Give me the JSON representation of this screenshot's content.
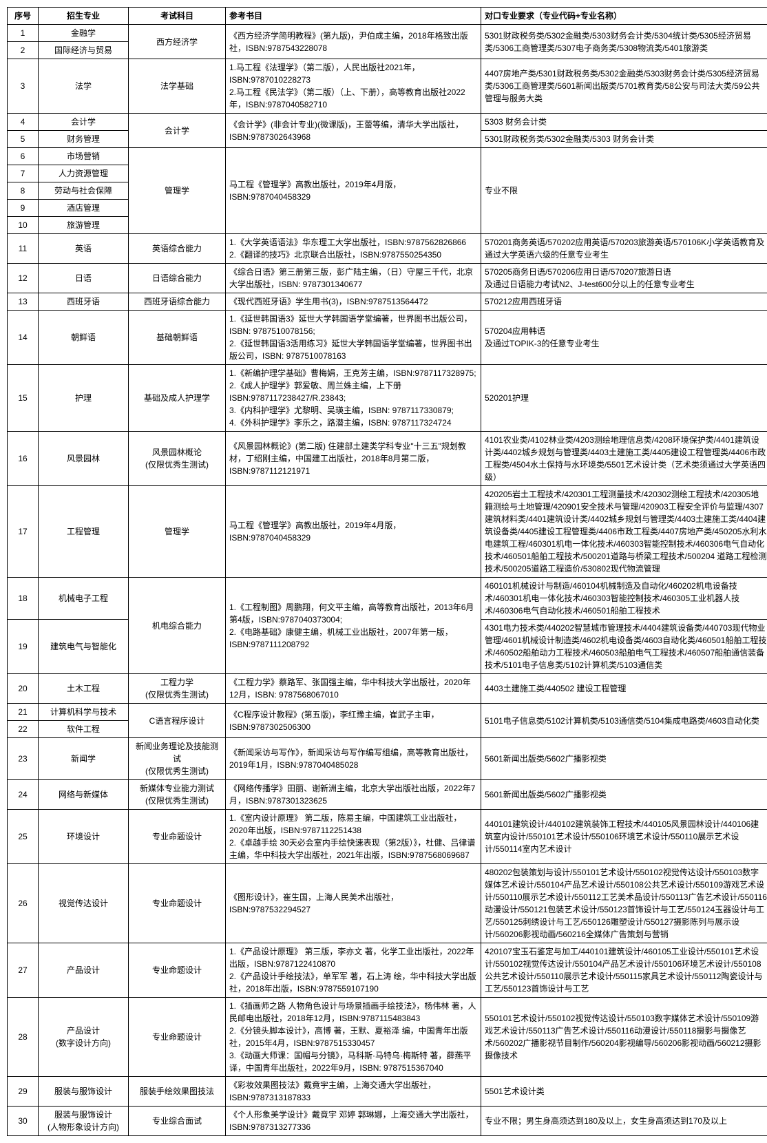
{
  "headers": {
    "seq": "序号",
    "major": "招生专业",
    "subject": "考试科目",
    "book": "参考书目",
    "req": "对口专业要求（专业代码+专业名称）"
  },
  "rows": [
    {
      "seq": "1",
      "major": "金融学",
      "subject": "西方经济学",
      "subject_rowspan": 2,
      "book": "《西方经济学简明教程》(第九版)，尹伯成主编，2018年格致出版社，ISBN:9787543228078",
      "book_rowspan": 2,
      "req": "5301财政税务类/5302金融类/5303财务会计类/5304统计类/5305经济贸易类/5306工商管理类/5307电子商务类/5308物流类/5401旅游类",
      "req_rowspan": 2
    },
    {
      "seq": "2",
      "major": "国际经济与贸易"
    },
    {
      "seq": "3",
      "major": "法学",
      "subject": "法学基础",
      "book": "1.马工程《法理学》（第二版），人民出版社2021年，ISBN:9787010228273\n2.马工程《民法学》（第二版）（上、下册），高等教育出版社2022年，ISBN:9787040582710",
      "req": "4407房地产类/5301财政税务类/5302金融类/5303财务会计类/5305经济贸易类/5306工商管理类/5601新闻出版类/5701教育类/58公安与司法大类/59公共管理与服务大类"
    },
    {
      "seq": "4",
      "major": "会计学",
      "subject": "会计学",
      "subject_rowspan": 2,
      "book": "《会计学》(非会计专业)(微课版)，王蕾等编，清华大学出版社，ISBN:9787302643968",
      "book_rowspan": 2,
      "req": "5303 财务会计类"
    },
    {
      "seq": "5",
      "major": "财务管理",
      "req": "5301财政税务类/5302金融类/5303 财务会计类"
    },
    {
      "seq": "6",
      "major": "市场营销",
      "subject": "管理学",
      "subject_rowspan": 5,
      "book": "马工程《管理学》高教出版社，2019年4月版，ISBN:9787040458329",
      "book_rowspan": 5,
      "req": "专业不限",
      "req_rowspan": 5
    },
    {
      "seq": "7",
      "major": "人力资源管理"
    },
    {
      "seq": "8",
      "major": "劳动与社会保障"
    },
    {
      "seq": "9",
      "major": "酒店管理"
    },
    {
      "seq": "10",
      "major": "旅游管理"
    },
    {
      "seq": "11",
      "major": "英语",
      "subject": "英语综合能力",
      "book": "1.《大学英语语法》华东理工大学出版社，ISBN:9787562826866\n2.《翻译的技巧》北京联合出版社，ISBN:9787550254350",
      "req": "570201商务英语/570202应用英语/570203旅游英语/570106K小学英语教育及通过大学英语六级的任意专业考生"
    },
    {
      "seq": "12",
      "major": "日语",
      "subject": "日语综合能力",
      "book": "《综合日语》第三册第三版，彭广陆主编，（日）守屋三千代，北京大学出版社，ISBN: 9787301340677",
      "req": "570205商务日语/570206应用日语/570207旅游日语\n及通过日语能力考试N2、J-test600分以上的任意专业考生"
    },
    {
      "seq": "13",
      "major": "西班牙语",
      "subject": "西班牙语综合能力",
      "book": "《现代西班牙语》学生用书(3)，ISBN:9787513564472",
      "req": "570212应用西班牙语"
    },
    {
      "seq": "14",
      "major": "朝鲜语",
      "subject": "基础朝鲜语",
      "book": "1.《延世韩国语3》延世大学韩国语学堂编著，世界图书出版公司，ISBN: 9787510078156;\n2.《延世韩国语3活用练习》延世大学韩国语学堂编著，世界图书出版公司，ISBN: 9787510078163",
      "req": "570204应用韩语\n及通过TOPIK-3的任意专业考生"
    },
    {
      "seq": "15",
      "major": "护理",
      "subject": "基础及成人护理学",
      "book": "1.《新编护理学基础》曹梅娟，王克芳主编，ISBN:9787117328975;\n2.《成人护理学》郭爱敏、周兰姝主编，上下册\nISBN:9787117238427/R.23843;\n3.《内科护理学》尤黎明、吴瑛主编，ISBN: 9787117330879;\n4.《外科护理学》李乐之，路潜主编，ISBN: 9787117324724",
      "req": "520201护理"
    },
    {
      "seq": "16",
      "major": "风景园林",
      "subject": "风景园林概论\n(仅限优秀生测试)",
      "book": "《风景园林概论》(第二版)  住建部土建类学科专业\"十三五\"规划教材，丁绍刚主编，中国建工出版社，2018年8月第二版，ISBN:9787112121971",
      "req": "4101农业类/4102林业类/4203测绘地理信息类/4208环境保护类/4401建筑设计类/4402城乡规划与管理类/4403土建施工类/4405建设工程管理类/4406市政工程类/4504水土保持与水环境类/5501艺术设计类（艺术类须通过大学英语四级）"
    },
    {
      "seq": "17",
      "major": "工程管理",
      "subject": "管理学",
      "book": "马工程《管理学》高教出版社，2019年4月版，ISBN:9787040458329",
      "req": "420205岩土工程技术/420301工程测量技术/420302测绘工程技术/420305地籍测绘与土地管理/420901安全技术与管理/420903工程安全评价与监理/4307建筑材料类/4401建筑设计类/4402城乡规划与管理类/4403土建施工类/4404建筑设备类/4405建设工程管理类/4406市政工程类/4407房地产类/450205水利水电建筑工程/460301机电一体化技术/460303智能控制技术/460306电气自动化技术/460501船舶工程技术/500201道路与桥梁工程技术/500204 道路工程检测技术/500205道路工程造价/530802现代物流管理"
    },
    {
      "seq": "18",
      "major": "机械电子工程",
      "subject": "机电综合能力",
      "subject_rowspan": 2,
      "book": "1.《工程制图》周鹏翔，何文平主编，高等教育出版社，2013年6月第4版，ISBN:9787040373004;\n2.《电路基础》康健主编，机械工业出版社，2007年第一版，ISBN:9787111208792",
      "book_rowspan": 2,
      "req": "460101机械设计与制造/460104机械制造及自动化/460202机电设备技术/460301机电一体化技术/460303智能控制技术/460305工业机器人技术/460306电气自动化技术/460501船舶工程技术"
    },
    {
      "seq": "19",
      "major": "建筑电气与智能化",
      "req": "4301电力技术类/440202智慧城市管理技术/4404建筑设备类/440703现代物业管理/4601机械设计制造类/4602机电设备类/4603自动化类/460501船舶工程技术/460502船舶动力工程技术/460503船舶电气工程技术/460507船舶通信装备技术/5101电子信息类/5102计算机类/5103通信类"
    },
    {
      "seq": "20",
      "major": "土木工程",
      "subject": "工程力学\n(仅限优秀生测试)",
      "book": "《工程力学》蔡路军、张国强主编，华中科技大学出版社，2020年12月，ISBN: 9787568067010",
      "req": "4403土建施工类/440502 建设工程管理"
    },
    {
      "seq": "21",
      "major": "计算机科学与技术",
      "subject": "C语言程序设计",
      "subject_rowspan": 2,
      "book": "《C程序设计教程》(第五版)，李红豫主编，崔武子主审，ISBN:9787302506300",
      "book_rowspan": 2,
      "req": "5101电子信息类/5102计算机类/5103通信类/5104集成电路类/4603自动化类",
      "req_rowspan": 2
    },
    {
      "seq": "22",
      "major": "软件工程"
    },
    {
      "seq": "23",
      "major": "新闻学",
      "subject": "新闻业务理论及技能测试\n(仅限优秀生测试)",
      "book": "《新闻采访与写作》，新闻采访与写作编写组编，高等教育出版社，2019年1月，ISBN:9787040485028",
      "req": "5601新闻出版类/5602广播影视类"
    },
    {
      "seq": "24",
      "major": "网络与新媒体",
      "subject": "新媒体专业能力测试\n(仅限优秀生测试)",
      "book": "《网络传播学》田丽、谢新洲主编，北京大学出版社出版，2022年7月，ISBN:9787301323625",
      "req": "5601新闻出版类/5602广播影视类"
    },
    {
      "seq": "25",
      "major": "环境设计",
      "subject": "专业命题设计",
      "book": "1.《室内设计原理》 第二版，陈易主编，中国建筑工业出版社，2020年出版，ISBN:9787112251438\n2.《卓越手绘 30天必会室内手绘快速表现（第2版）》，杜健、吕律谱主编，华中科技大学出版社，2021年出版，ISBN:9787568069687",
      "req": "440101建筑设计/440102建筑装饰工程技术/440105风景园林设计/440106建筑室内设计/550101艺术设计/550106环境艺术设计/550110展示艺术设计/550114室内艺术设计"
    },
    {
      "seq": "26",
      "major": "视觉传达设计",
      "subject": "专业命题设计",
      "book": "《图形设计》，崔生国，上海人民美术出版社，ISBN:9787532294527",
      "req": "480202包装策划与设计/550101艺术设计/550102视觉传达设计/550103数字媒体艺术设计/550104产品艺术设计/550108公共艺术设计/550109游戏艺术设计/550110展示艺术设计/550112工艺美术品设计/550113广告艺术设计/550116动漫设计/550121包装艺术设计/550123首饰设计与工艺/550124玉器设计与工艺/550125刺绣设计与工艺/550126雕塑设计/550127摄影陈列与展示设计/560206影视动画/560216全媒体广告策划与营销"
    },
    {
      "seq": "27",
      "major": "产品设计",
      "subject": "专业命题设计",
      "book": "1.《产品设计原理》 第三版，李亦文 著，化学工业出版社，2022年出版，ISBN:9787122410870\n2.《产品设计手绘技法》，单军军 著，石上涛 绘，华中科技大学出版社，2018年出版，ISBN:9787559107190",
      "req": "420107宝玉石鉴定与加工/440101建筑设计/460105工业设计/550101艺术设计/550102视觉传达设计/550104产品艺术设计/550106环境艺术设计/550108公共艺术设计/550110展示艺术设计/550115家具艺术设计/550112陶瓷设计与工艺/550123首饰设计与工艺"
    },
    {
      "seq": "28",
      "major": "产品设计\n(数字设计方向)",
      "subject": "专业命题设计",
      "book": "1.《插画师之路 人物角色设计与场景插画手绘技法》，杨伟林 著，人民邮电出版社，2018年12月，ISBN:9787115483843\n2.《分镜头脚本设计》，高博 著，王默、夏裕泽 编，中国青年出版社，2015年4月，ISBN:9787515330457\n3.《动画大师课：国帽与分镜》，马科斯·马特乌·梅斯特 著，薛燕平译，中国青年出版社，2022年9月，ISBN: 9787515367040",
      "req": "550101艺术设计/550102视觉传达设计/550103数字媒体艺术设计/550109游戏艺术设计/550113广告艺术设计/550116动漫设计/550118摄影与摄像艺术/560202广播影视节目制作/560204影视编导/560206影视动画/560212摄影摄像技术"
    },
    {
      "seq": "29",
      "major": "服装与服饰设计",
      "subject": "服装手绘效果图技法",
      "book": "《彩妆效果图技法》戴竟宇主编，上海交通大学出版社，ISBN:9787313187833",
      "req": "5501艺术设计类"
    },
    {
      "seq": "30",
      "major": "服装与服饰设计\n(人物形象设计方向)",
      "subject": "专业综合面试",
      "book": "《个人形象美学设计》戴竟宇 邓婷 郭琳娜，上海交通大学出版社，ISBN:9787313277336",
      "req": "专业不限；男生身高须达到180及以上，女生身高须达到170及以上"
    }
  ]
}
